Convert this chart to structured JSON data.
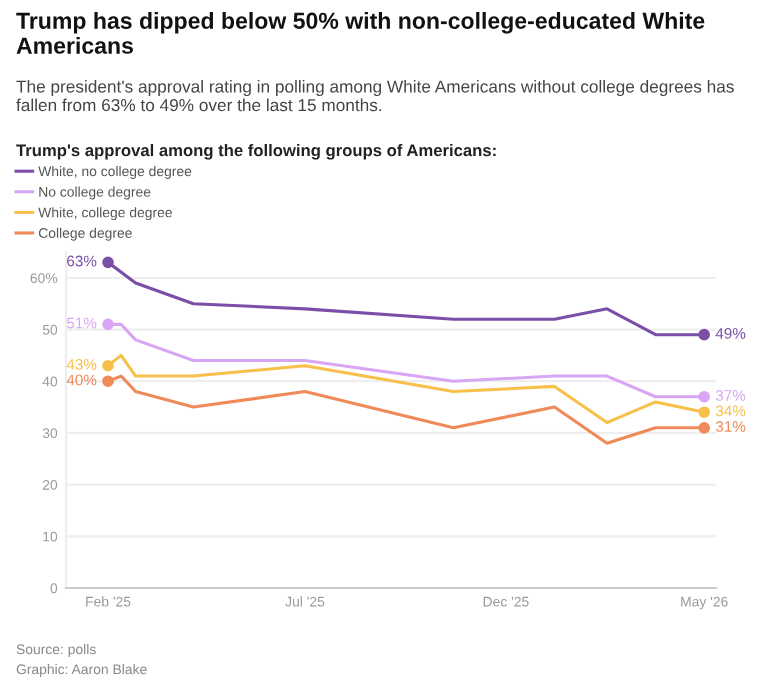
{
  "chart_data": {
    "type": "line",
    "title": "Trump has dipped below 50% with non-college-educated White Americans",
    "subtitle": "The president's approval rating in polling among White Americans without college degrees has fallen from 63% to 49% over the last 15 months.",
    "annotations": [
      "Trump's approval among the following groups of Americans:",
      "Source: polls",
      "Graphic: Aaron Blake"
    ],
    "x": [
      "2025-02-01",
      "2025-02-11",
      "2025-02-22",
      "2025-04-07",
      "2025-07-01",
      "2025-10-22",
      "2026-01-07",
      "2026-02-16",
      "2026-03-25",
      "2026-05-01"
    ],
    "series": [
      {
        "name": "White, no college degree",
        "color": "#7b4fa8",
        "x": [
          "2025-02-01",
          "2025-02-22",
          "2025-04-07",
          "2025-07-01",
          "2025-10-22",
          "2026-01-07",
          "2026-02-16",
          "2026-03-25",
          "2026-05-01"
        ],
        "values": [
          63,
          59,
          55,
          54,
          52,
          52,
          54,
          49,
          49
        ],
        "value_labels": [
          "63%",
          null,
          null,
          null,
          null,
          null,
          null,
          null,
          "49%"
        ]
      },
      {
        "name": "No college degree",
        "color": "#d9a6f5",
        "values": [
          51,
          51,
          48,
          44,
          44,
          40,
          41,
          41,
          37,
          37
        ],
        "value_labels": [
          "51%",
          null,
          null,
          null,
          null,
          null,
          null,
          null,
          null,
          "37%"
        ]
      },
      {
        "name": "White, college degree",
        "color": "#f7c04a",
        "values": [
          43,
          45,
          41,
          41,
          43,
          38,
          39,
          32,
          36,
          34
        ],
        "value_labels": [
          "43%",
          null,
          null,
          null,
          null,
          null,
          null,
          null,
          null,
          "34%"
        ]
      },
      {
        "name": "College degree",
        "color": "#f08a5a",
        "values": [
          40,
          41,
          38,
          35,
          38,
          31,
          35,
          28,
          31,
          31
        ],
        "value_labels": [
          "40%",
          null,
          null,
          null,
          null,
          null,
          null,
          null,
          null,
          "31%"
        ]
      }
    ],
    "xlim": [
      "2024-12-31",
      "2026-05-10"
    ],
    "xticks": [
      {
        "value": "2025-02-01",
        "label": "Feb '25"
      },
      {
        "value": "2025-07-01",
        "label": "Jul '25"
      },
      {
        "value": "2025-12-01",
        "label": "Dec '25"
      },
      {
        "value": "2026-05-01",
        "label": "May '26"
      }
    ],
    "ylim": [
      0,
      65
    ],
    "yticks": [
      0,
      10,
      20,
      30,
      40,
      50,
      {
        "value": 60,
        "label": "60%"
      }
    ],
    "grid": "y",
    "legend": "top left",
    "marker": "none"
  }
}
